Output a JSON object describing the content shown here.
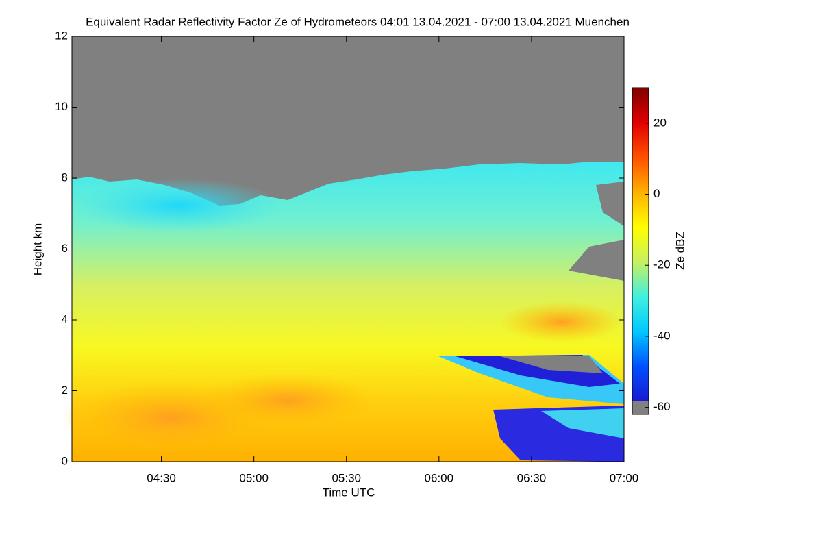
{
  "chart_data": {
    "type": "heatmap",
    "title": "Equivalent Radar Reflectivity Factor Ze of Hydrometeors   04:01 13.04.2021 - 07:00 13.04.2021 Muenchen",
    "xlabel": "Time UTC",
    "ylabel": "Height km",
    "colorbar_label": "Ze dBZ",
    "xlim": [
      "04:01",
      "07:00"
    ],
    "xticks": [
      "04:30",
      "05:00",
      "05:30",
      "06:00",
      "06:30",
      "07:00"
    ],
    "ylim": [
      0,
      12
    ],
    "yticks": [
      0,
      2,
      4,
      6,
      8,
      10,
      12
    ],
    "clim": [
      -62,
      30
    ],
    "cticks": [
      -60,
      -40,
      -20,
      0,
      20
    ],
    "missing_color": "#808080",
    "colormap": [
      "#1a1ad0",
      "#0050ff",
      "#00c8ff",
      "#40f0e0",
      "#c8f060",
      "#ffff00",
      "#ffb000",
      "#ff5000",
      "#e00000",
      "#800000"
    ]
  }
}
